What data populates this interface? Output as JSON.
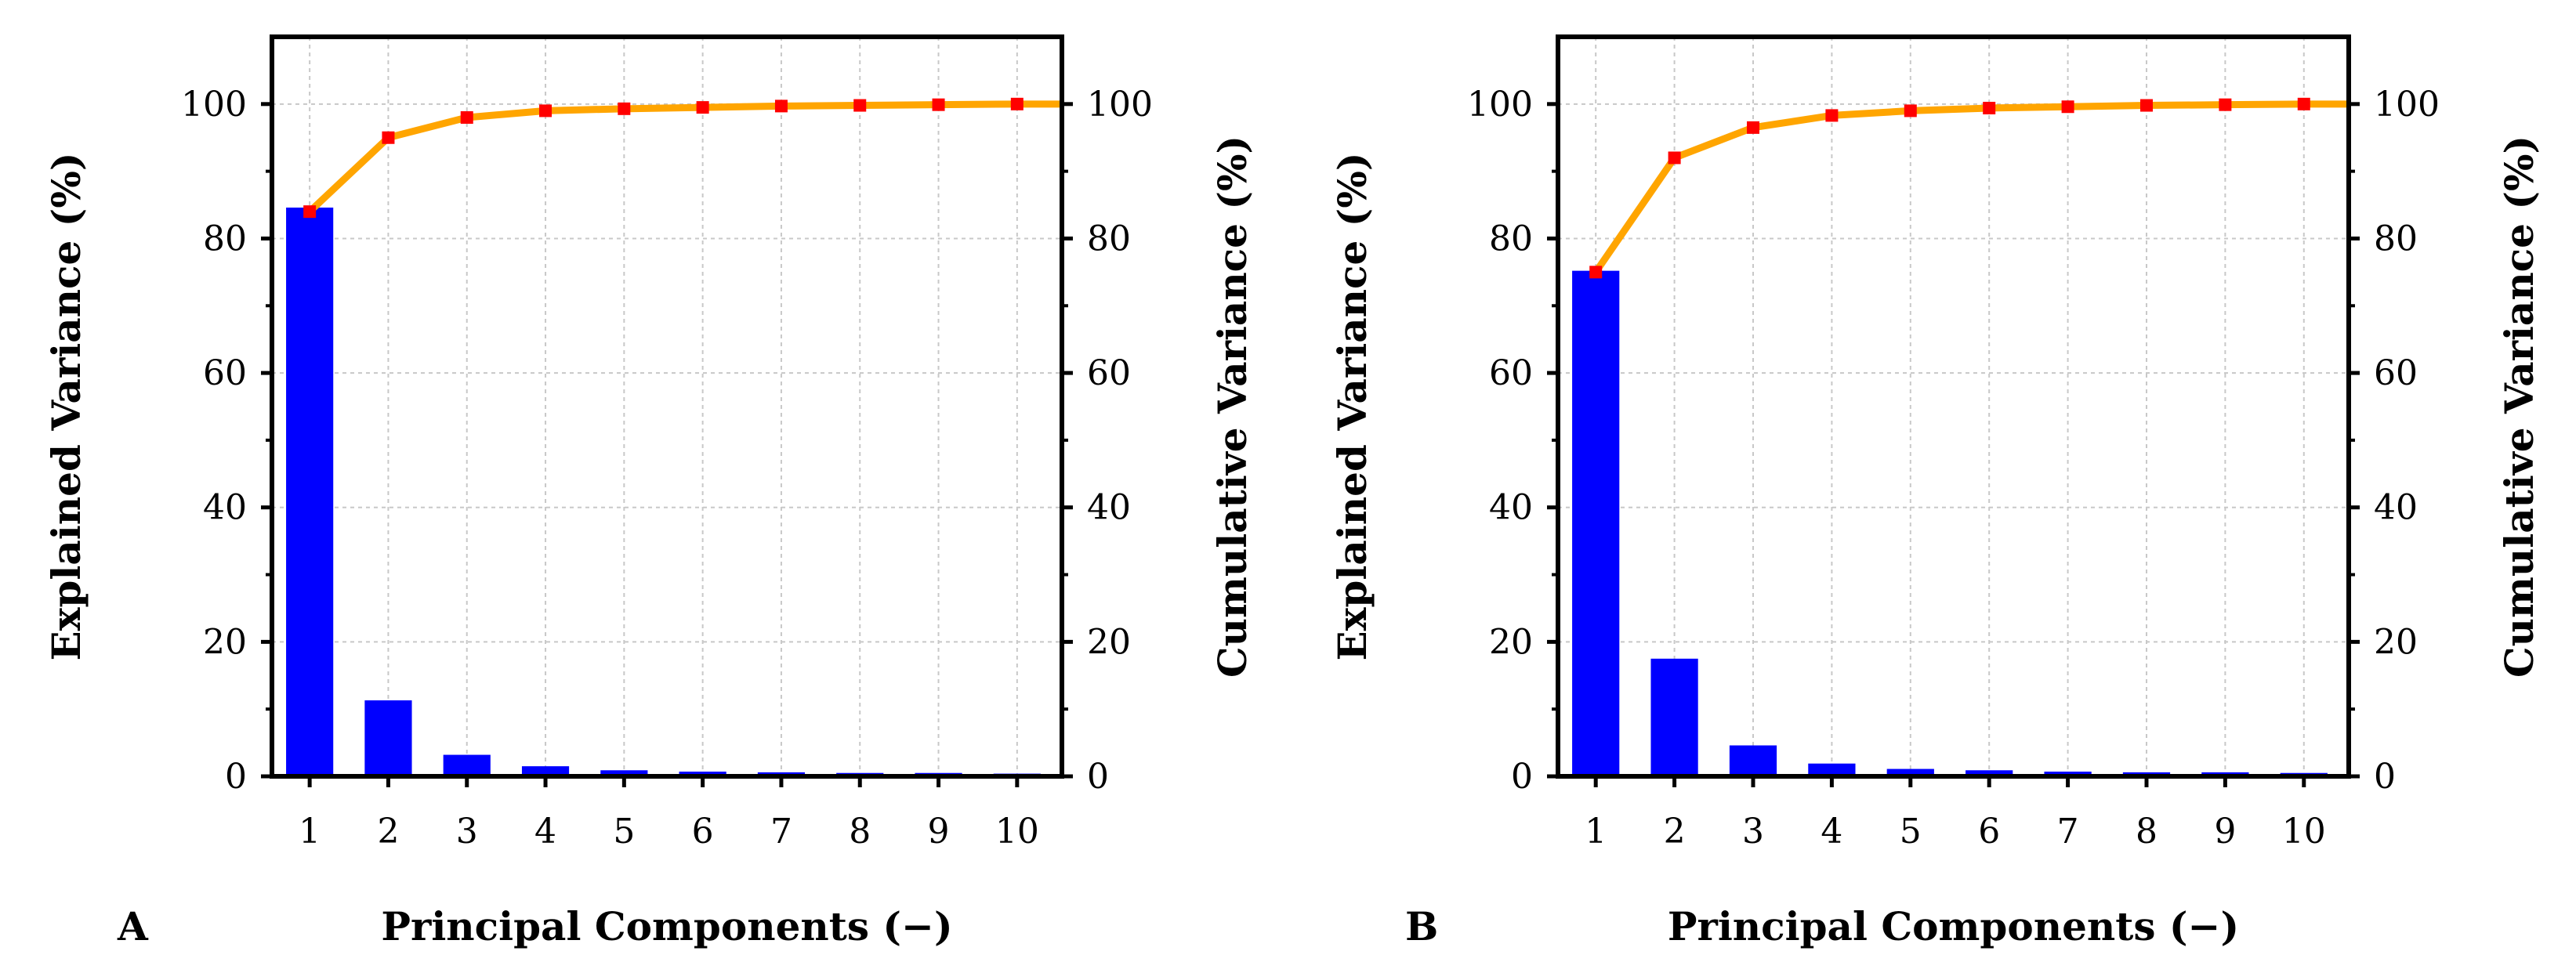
{
  "chart_data": [
    {
      "type": "bar",
      "panel_label": "A",
      "categories": [
        "1",
        "2",
        "3",
        "4",
        "5",
        "6",
        "7",
        "8",
        "9",
        "10"
      ],
      "xlabel": "Principal Components (−)",
      "ylabel": "Explained Variance (%)",
      "y2label": "Cumulative Variance (%)",
      "ylim": [
        0,
        110
      ],
      "y2lim": [
        0,
        110
      ],
      "yticks": [
        0,
        20,
        40,
        60,
        80,
        100
      ],
      "ytick_labels": [
        "0",
        "20",
        "40",
        "60",
        "80",
        "100"
      ],
      "grid": true,
      "series": [
        {
          "name": "Explained Variance",
          "type": "bar",
          "color": "#0000ff",
          "values": [
            84.6,
            11.3,
            3.2,
            1.5,
            0.9,
            0.7,
            0.6,
            0.5,
            0.5,
            0.4
          ]
        },
        {
          "name": "Cumulative Variance",
          "type": "line",
          "color": "#ffa500",
          "marker_color": "#ff0000",
          "values": [
            84.0,
            95.0,
            98.0,
            99.0,
            99.3,
            99.5,
            99.7,
            99.8,
            99.9,
            100.0
          ]
        }
      ]
    },
    {
      "type": "bar",
      "panel_label": "B",
      "categories": [
        "1",
        "2",
        "3",
        "4",
        "5",
        "6",
        "7",
        "8",
        "9",
        "10"
      ],
      "xlabel": "Principal Components (−)",
      "ylabel": "Explained Variance (%)",
      "y2label": "Cumulative Variance (%)",
      "ylim": [
        0,
        110
      ],
      "y2lim": [
        0,
        110
      ],
      "yticks": [
        0,
        20,
        40,
        60,
        80,
        100
      ],
      "ytick_labels": [
        "0",
        "20",
        "40",
        "60",
        "80",
        "100"
      ],
      "grid": true,
      "series": [
        {
          "name": "Explained Variance",
          "type": "bar",
          "color": "#0000ff",
          "values": [
            75.2,
            17.5,
            4.6,
            1.9,
            1.1,
            0.9,
            0.7,
            0.6,
            0.6,
            0.5
          ]
        },
        {
          "name": "Cumulative Variance",
          "type": "line",
          "color": "#ffa500",
          "marker_color": "#ff0000",
          "values": [
            75.0,
            92.0,
            96.5,
            98.3,
            99.0,
            99.4,
            99.6,
            99.8,
            99.9,
            100.0
          ]
        }
      ]
    }
  ]
}
